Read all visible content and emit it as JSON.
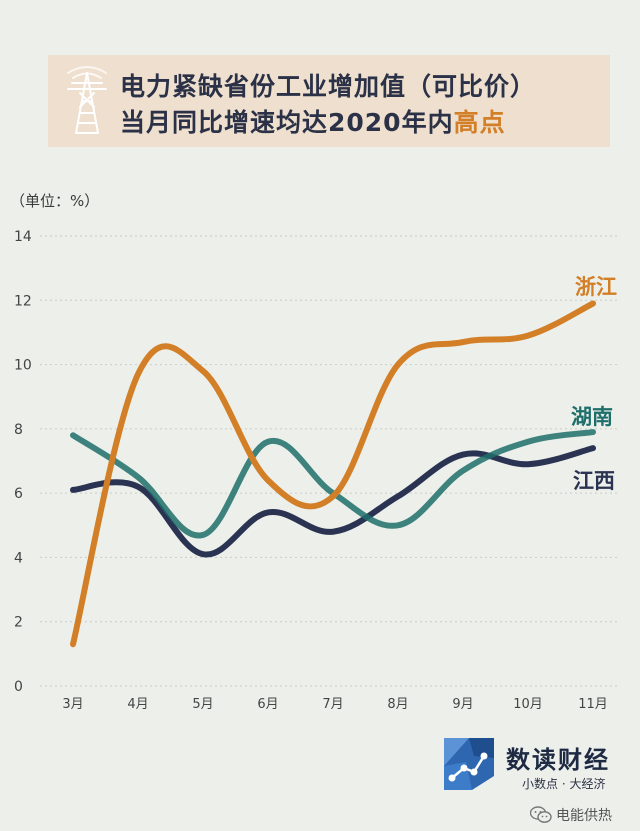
{
  "header": {
    "title_line1": "电力紧缺省份工业增加值（可比价）",
    "title_line2_prefix": "当月同比增速均达2020年内",
    "title_line2_highlight": "高点"
  },
  "footer": {
    "brand": "数读财经",
    "slogan": "小数点 · 大经济",
    "wechat": "电能供热"
  },
  "icons": {
    "header": "power-tower-icon",
    "logo": "shuducaijing-logo-icon",
    "wechat": "wechat-icon"
  },
  "chart_data": {
    "type": "line",
    "unit_label": "（单位：%）",
    "categories": [
      "3月",
      "4月",
      "5月",
      "6月",
      "7月",
      "8月",
      "9月",
      "10月",
      "11月"
    ],
    "ylim": [
      0,
      14
    ],
    "yticks": [
      0,
      2,
      4,
      6,
      8,
      10,
      12,
      14
    ],
    "grid": true,
    "series": [
      {
        "name": "浙江",
        "color": "#d27f27",
        "values": [
          1.3,
          9.7,
          9.8,
          6.4,
          5.9,
          10.0,
          10.7,
          10.9,
          11.9
        ]
      },
      {
        "name": "湖南",
        "color": "#1e6e6b",
        "values": [
          7.8,
          6.5,
          4.7,
          7.6,
          6.0,
          5.0,
          6.7,
          7.6,
          7.9
        ]
      },
      {
        "name": "江西",
        "color": "#2b3352",
        "values": [
          6.1,
          6.2,
          4.1,
          5.4,
          4.8,
          5.9,
          7.2,
          6.9,
          7.4
        ]
      }
    ]
  }
}
